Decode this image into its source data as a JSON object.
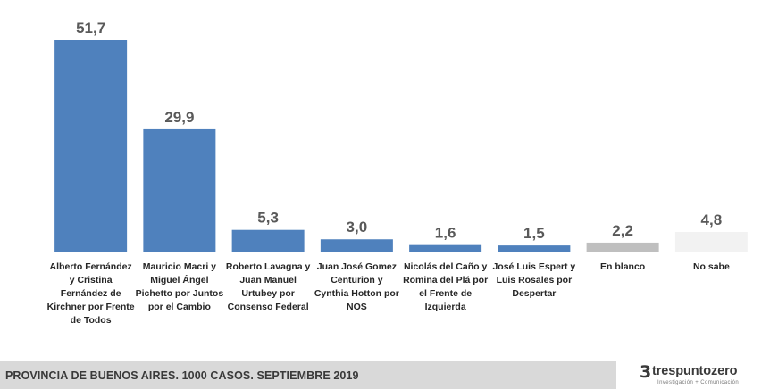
{
  "chart_data": {
    "type": "bar",
    "categories": [
      "Alberto Fernández y Cristina Fernández de Kirchner por Frente de Todos",
      "Mauricio Macri y Miguel Ángel Pichetto por Juntos por el Cambio",
      "Roberto Lavagna y Juan Manuel Urtubey por Consenso Federal",
      "Juan José Gomez Centurion y Cynthia Hotton por NOS",
      "Nicolás del Caño y Romina del Plá por el Frente de Izquierda",
      "José Luis Espert y Luis Rosales por Despertar",
      "En blanco",
      "No sabe"
    ],
    "category_lines": [
      [
        "Alberto Fernández",
        "y Cristina",
        "Fernández de",
        "Kirchner por Frente",
        "de Todos"
      ],
      [
        "Mauricio Macri y",
        "Miguel Ángel",
        "Pichetto por Juntos",
        "por el Cambio"
      ],
      [
        "Roberto Lavagna y",
        "Juan Manuel",
        "Urtubey por",
        "Consenso Federal"
      ],
      [
        "Juan José Gomez",
        "Centurion y",
        "Cynthia Hotton por",
        "NOS"
      ],
      [
        "Nicolás del Caño y",
        "Romina del Plá por",
        "el Frente de",
        "Izquierda"
      ],
      [
        "José Luis Espert y",
        "Luis Rosales por",
        "Despertar"
      ],
      [
        "En blanco"
      ],
      [
        "No sabe"
      ]
    ],
    "values": [
      51.7,
      29.9,
      5.3,
      3.0,
      1.6,
      1.5,
      2.2,
      4.8
    ],
    "value_labels": [
      "51,7",
      "29,9",
      "5,3",
      "3,0",
      "1,6",
      "1,5",
      "2,2",
      "4,8"
    ],
    "bar_colors": [
      "#4f81bd",
      "#4f81bd",
      "#4f81bd",
      "#4f81bd",
      "#4f81bd",
      "#4f81bd",
      "#bfbfbf",
      "#f2f2f2"
    ],
    "ylim": [
      0,
      51.7
    ],
    "grid": false,
    "legend": "none"
  },
  "footer": {
    "caption": "PROVINCIA DE BUENOS AIRES. 1000 CASOS. SEPTIEMBRE 2019"
  },
  "brand": {
    "mark": "3",
    "name": "trespuntozero",
    "tagline": "Investigación + Comunicación"
  }
}
